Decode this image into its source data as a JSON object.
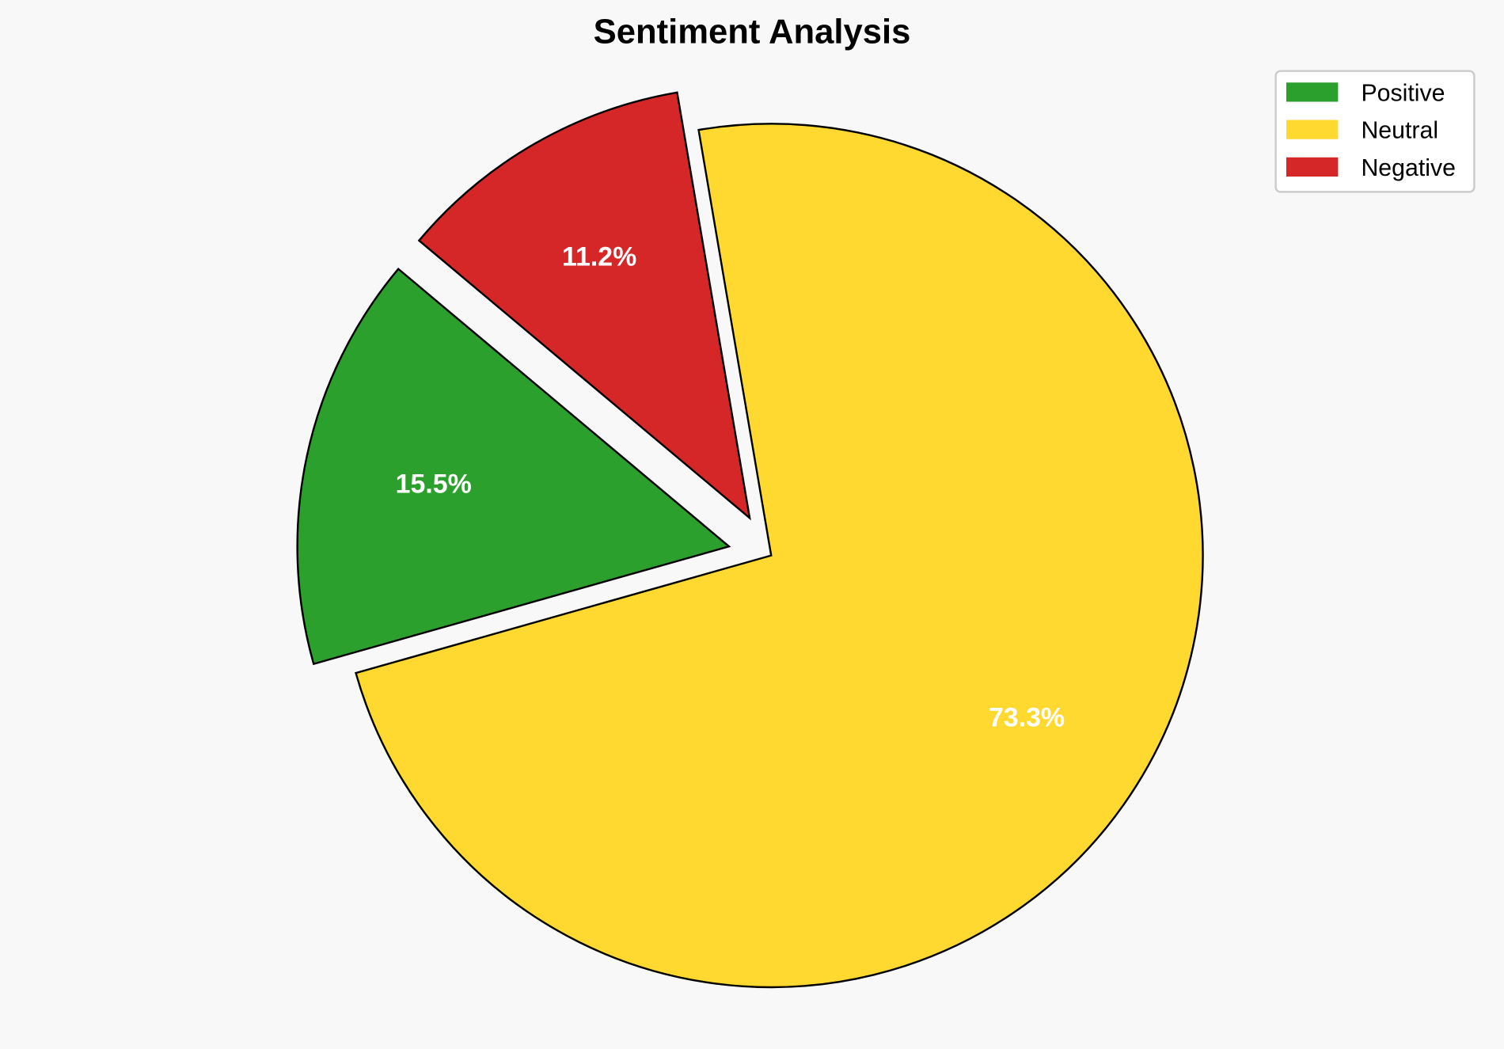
{
  "chart_data": {
    "type": "pie",
    "title": "Sentiment Analysis",
    "categories": [
      "Positive",
      "Neutral",
      "Negative"
    ],
    "values": [
      15.5,
      73.3,
      11.2
    ],
    "labels": [
      "15.5%",
      "73.3%",
      "11.2%"
    ],
    "colors": [
      "#2ca02c",
      "#ffd92f",
      "#d62728"
    ],
    "explode": [
      0.1,
      0,
      0.1
    ],
    "start_angle_deg": 140,
    "direction": "counterclockwise",
    "legend": {
      "placement": "top-right",
      "entries": [
        "Positive",
        "Neutral",
        "Negative"
      ]
    },
    "background": "#f8f8f8"
  }
}
